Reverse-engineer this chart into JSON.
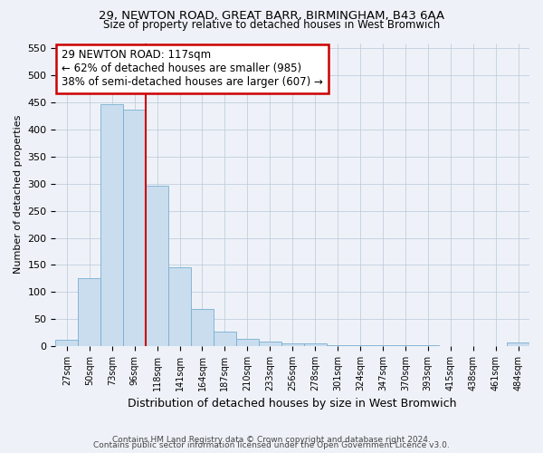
{
  "title_line1": "29, NEWTON ROAD, GREAT BARR, BIRMINGHAM, B43 6AA",
  "title_line2": "Size of property relative to detached houses in West Bromwich",
  "xlabel": "Distribution of detached houses by size in West Bromwich",
  "ylabel": "Number of detached properties",
  "bar_color": "#c9ddef",
  "bar_edge_color": "#7aaed0",
  "grid_color": "#b8c8d8",
  "annotation_box_text": "29 NEWTON ROAD: 117sqm\n← 62% of detached houses are smaller (985)\n38% of semi-detached houses are larger (607) →",
  "annotation_box_color": "#ffffff",
  "annotation_box_edge_color": "#cc0000",
  "vline_color": "#cc0000",
  "vline_index": 4,
  "categories": [
    "27sqm",
    "50sqm",
    "73sqm",
    "96sqm",
    "118sqm",
    "141sqm",
    "164sqm",
    "187sqm",
    "210sqm",
    "233sqm",
    "256sqm",
    "278sqm",
    "301sqm",
    "324sqm",
    "347sqm",
    "370sqm",
    "393sqm",
    "415sqm",
    "438sqm",
    "461sqm",
    "484sqm"
  ],
  "values": [
    12,
    126,
    447,
    437,
    296,
    146,
    68,
    27,
    13,
    8,
    5,
    5,
    2,
    2,
    1,
    1,
    1,
    0,
    0,
    0,
    6
  ],
  "ylim": [
    0,
    560
  ],
  "yticks": [
    0,
    50,
    100,
    150,
    200,
    250,
    300,
    350,
    400,
    450,
    500,
    550
  ],
  "footer_line1": "Contains HM Land Registry data © Crown copyright and database right 2024.",
  "footer_line2": "Contains public sector information licensed under the Open Government Licence v3.0.",
  "background_color": "#eef2f8",
  "title1_fontsize": 9.5,
  "title2_fontsize": 8.5,
  "ylabel_fontsize": 8,
  "xlabel_fontsize": 9,
  "tick_fontsize": 7,
  "footer_fontsize": 6.5
}
